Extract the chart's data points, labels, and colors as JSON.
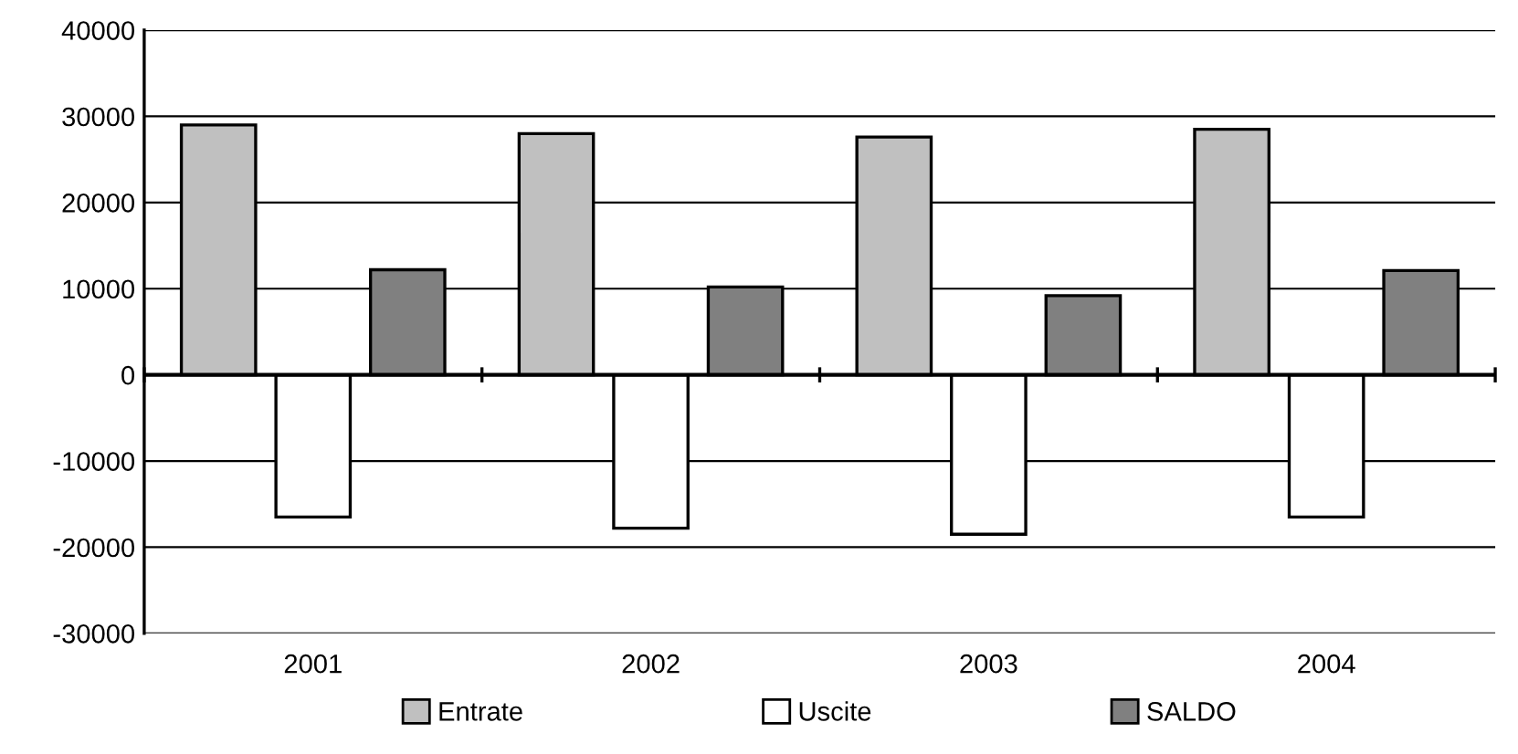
{
  "chart_data": {
    "type": "bar",
    "categories": [
      "2001",
      "2002",
      "2003",
      "2004"
    ],
    "series": [
      {
        "name": "Entrate",
        "color": "#c0c0c0",
        "values": [
          29000,
          28000,
          27600,
          28500
        ]
      },
      {
        "name": "Uscite",
        "color": "#ffffff",
        "values": [
          -16500,
          -17800,
          -18500,
          -16500
        ]
      },
      {
        "name": "SALDO",
        "color": "#808080",
        "values": [
          12200,
          10200,
          9200,
          12100
        ]
      }
    ],
    "ylim": [
      -30000,
      40000
    ],
    "yticks": [
      -30000,
      -20000,
      -10000,
      0,
      10000,
      20000,
      30000,
      40000
    ],
    "grid": "y",
    "legend": "bottom"
  }
}
